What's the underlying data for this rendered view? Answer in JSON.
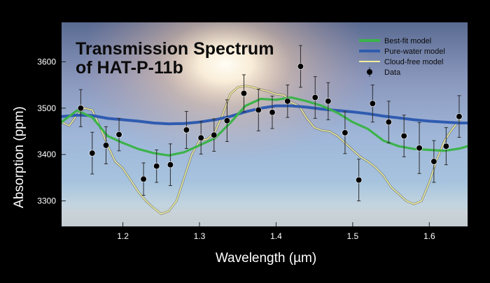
{
  "chart_data": {
    "type": "line",
    "title": "Transmission Spectrum\nof HAT-P-11b",
    "xlabel": "Wavelength (µm)",
    "ylabel": "Absorption (ppm)",
    "xlim": [
      1.12,
      1.65
    ],
    "ylim": [
      3245,
      3685
    ],
    "xticks": [
      1.2,
      1.3,
      1.4,
      1.5,
      1.6
    ],
    "yticks": [
      3300,
      3400,
      3500,
      3600
    ],
    "legend_position": "top-right",
    "series": [
      {
        "name": "Best-fit model",
        "color": "#3cb34a",
        "x": [
          1.12,
          1.14,
          1.16,
          1.18,
          1.2,
          1.22,
          1.24,
          1.26,
          1.28,
          1.3,
          1.32,
          1.34,
          1.36,
          1.38,
          1.4,
          1.42,
          1.44,
          1.46,
          1.48,
          1.5,
          1.52,
          1.54,
          1.56,
          1.58,
          1.6,
          1.62,
          1.64,
          1.65
        ],
        "y": [
          3470,
          3495,
          3480,
          3440,
          3425,
          3412,
          3403,
          3398,
          3405,
          3420,
          3435,
          3468,
          3505,
          3520,
          3518,
          3523,
          3515,
          3505,
          3490,
          3470,
          3455,
          3430,
          3418,
          3412,
          3410,
          3408,
          3413,
          3418
        ]
      },
      {
        "name": "Pure-water model",
        "color": "#2f5bb0",
        "x": [
          1.12,
          1.14,
          1.16,
          1.18,
          1.2,
          1.22,
          1.24,
          1.26,
          1.28,
          1.3,
          1.32,
          1.34,
          1.36,
          1.38,
          1.4,
          1.42,
          1.44,
          1.46,
          1.48,
          1.5,
          1.52,
          1.54,
          1.56,
          1.58,
          1.6,
          1.62,
          1.64,
          1.65
        ],
        "y": [
          3482,
          3485,
          3484,
          3478,
          3475,
          3472,
          3468,
          3466,
          3467,
          3470,
          3475,
          3482,
          3492,
          3500,
          3505,
          3505,
          3502,
          3498,
          3495,
          3492,
          3488,
          3483,
          3479,
          3475,
          3472,
          3470,
          3468,
          3468
        ]
      },
      {
        "name": "Cloud-free model",
        "color": "#f2ef9a",
        "x": [
          1.12,
          1.13,
          1.14,
          1.15,
          1.16,
          1.17,
          1.18,
          1.19,
          1.2,
          1.21,
          1.22,
          1.23,
          1.24,
          1.25,
          1.26,
          1.27,
          1.28,
          1.29,
          1.3,
          1.31,
          1.32,
          1.33,
          1.34,
          1.35,
          1.36,
          1.37,
          1.38,
          1.39,
          1.4,
          1.41,
          1.42,
          1.43,
          1.44,
          1.45,
          1.46,
          1.47,
          1.48,
          1.49,
          1.5,
          1.51,
          1.52,
          1.53,
          1.54,
          1.55,
          1.56,
          1.57,
          1.58,
          1.59,
          1.6,
          1.61,
          1.62,
          1.63,
          1.64
        ],
        "y": [
          3470,
          3462,
          3485,
          3500,
          3496,
          3460,
          3420,
          3385,
          3370,
          3345,
          3320,
          3300,
          3285,
          3272,
          3278,
          3300,
          3350,
          3400,
          3430,
          3433,
          3448,
          3485,
          3530,
          3545,
          3548,
          3545,
          3540,
          3536,
          3530,
          3528,
          3512,
          3505,
          3478,
          3458,
          3452,
          3450,
          3440,
          3425,
          3410,
          3395,
          3385,
          3372,
          3355,
          3330,
          3315,
          3300,
          3293,
          3300,
          3340,
          3390,
          3430,
          3455,
          3475
        ]
      }
    ],
    "data_points": {
      "name": "Data",
      "x": [
        1.145,
        1.16,
        1.178,
        1.195,
        1.227,
        1.244,
        1.262,
        1.283,
        1.302,
        1.319,
        1.336,
        1.358,
        1.377,
        1.395,
        1.415,
        1.432,
        1.451,
        1.468,
        1.49,
        1.508,
        1.526,
        1.547,
        1.567,
        1.587,
        1.606,
        1.622,
        1.639
      ],
      "y": [
        3500,
        3403,
        3420,
        3443,
        3347,
        3375,
        3378,
        3453,
        3436,
        3442,
        3473,
        3532,
        3496,
        3491,
        3515,
        3590,
        3523,
        3515,
        3447,
        3345,
        3510,
        3470,
        3440,
        3414,
        3385,
        3418,
        3482
      ],
      "err": [
        40,
        45,
        40,
        35,
        35,
        35,
        45,
        40,
        35,
        35,
        45,
        40,
        45,
        35,
        35,
        45,
        45,
        40,
        45,
        45,
        40,
        45,
        45,
        55,
        45,
        40,
        45
      ]
    }
  }
}
